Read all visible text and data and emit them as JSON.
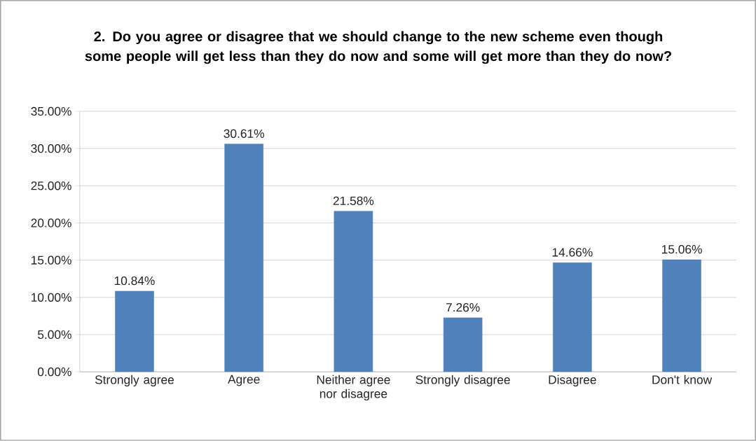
{
  "chart_data": {
    "type": "bar",
    "title": "2. Do you agree or disagree that we should change to the new scheme even though some people will get less than they do now and some will get more than they do now?",
    "categories": [
      "Strongly agree",
      "Agree",
      "Neither agree nor disagree",
      "Strongly disagree",
      "Disagree",
      "Don't know"
    ],
    "values": [
      10.84,
      30.61,
      21.58,
      7.26,
      14.66,
      15.06
    ],
    "value_labels": [
      "10.84%",
      "30.61%",
      "21.58%",
      "7.26%",
      "14.66%",
      "15.06%"
    ],
    "color": "#4f81bd",
    "ylim": [
      0,
      35
    ],
    "yticks": [
      {
        "value": 0,
        "label": "0.00%"
      },
      {
        "value": 5,
        "label": "5.00%"
      },
      {
        "value": 10,
        "label": "10.00%"
      },
      {
        "value": 15,
        "label": "15.00%"
      },
      {
        "value": 20,
        "label": "20.00%"
      },
      {
        "value": 25,
        "label": "25.00%"
      },
      {
        "value": 30,
        "label": "30.00%"
      },
      {
        "value": 35,
        "label": "35.00%"
      }
    ],
    "grid": "y"
  }
}
